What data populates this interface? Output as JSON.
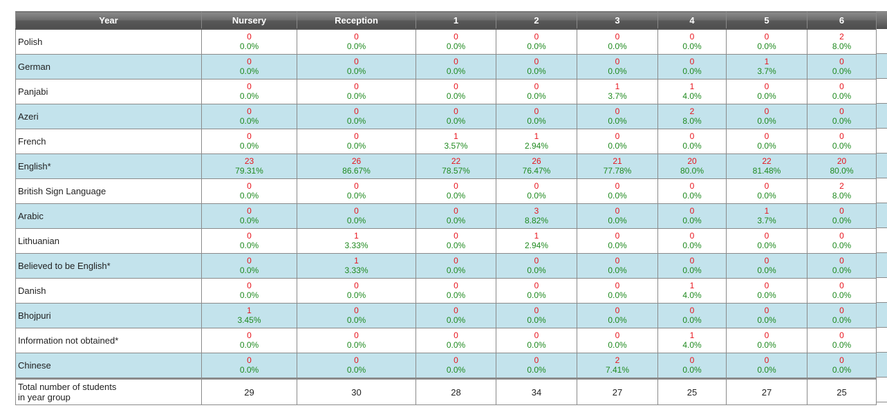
{
  "table": {
    "headers": [
      "Year",
      "Nursery",
      "Reception",
      "1",
      "2",
      "3",
      "4",
      "5",
      "6"
    ],
    "rows": [
      {
        "label": "Polish",
        "cells": [
          [
            "0",
            "0.0%"
          ],
          [
            "0",
            "0.0%"
          ],
          [
            "0",
            "0.0%"
          ],
          [
            "0",
            "0.0%"
          ],
          [
            "0",
            "0.0%"
          ],
          [
            "0",
            "0.0%"
          ],
          [
            "0",
            "0.0%"
          ],
          [
            "2",
            "8.0%"
          ]
        ]
      },
      {
        "label": "German",
        "cells": [
          [
            "0",
            "0.0%"
          ],
          [
            "0",
            "0.0%"
          ],
          [
            "0",
            "0.0%"
          ],
          [
            "0",
            "0.0%"
          ],
          [
            "0",
            "0.0%"
          ],
          [
            "0",
            "0.0%"
          ],
          [
            "1",
            "3.7%"
          ],
          [
            "0",
            "0.0%"
          ]
        ]
      },
      {
        "label": "Panjabi",
        "cells": [
          [
            "0",
            "0.0%"
          ],
          [
            "0",
            "0.0%"
          ],
          [
            "0",
            "0.0%"
          ],
          [
            "0",
            "0.0%"
          ],
          [
            "1",
            "3.7%"
          ],
          [
            "1",
            "4.0%"
          ],
          [
            "0",
            "0.0%"
          ],
          [
            "0",
            "0.0%"
          ]
        ]
      },
      {
        "label": "Azeri",
        "cells": [
          [
            "0",
            "0.0%"
          ],
          [
            "0",
            "0.0%"
          ],
          [
            "0",
            "0.0%"
          ],
          [
            "0",
            "0.0%"
          ],
          [
            "0",
            "0.0%"
          ],
          [
            "2",
            "8.0%"
          ],
          [
            "0",
            "0.0%"
          ],
          [
            "0",
            "0.0%"
          ]
        ]
      },
      {
        "label": "French",
        "cells": [
          [
            "0",
            "0.0%"
          ],
          [
            "0",
            "0.0%"
          ],
          [
            "1",
            "3.57%"
          ],
          [
            "1",
            "2.94%"
          ],
          [
            "0",
            "0.0%"
          ],
          [
            "0",
            "0.0%"
          ],
          [
            "0",
            "0.0%"
          ],
          [
            "0",
            "0.0%"
          ]
        ]
      },
      {
        "label": "English*",
        "cells": [
          [
            "23",
            "79.31%"
          ],
          [
            "26",
            "86.67%"
          ],
          [
            "22",
            "78.57%"
          ],
          [
            "26",
            "76.47%"
          ],
          [
            "21",
            "77.78%"
          ],
          [
            "20",
            "80.0%"
          ],
          [
            "22",
            "81.48%"
          ],
          [
            "20",
            "80.0%"
          ]
        ]
      },
      {
        "label": "British Sign Language",
        "cells": [
          [
            "0",
            "0.0%"
          ],
          [
            "0",
            "0.0%"
          ],
          [
            "0",
            "0.0%"
          ],
          [
            "0",
            "0.0%"
          ],
          [
            "0",
            "0.0%"
          ],
          [
            "0",
            "0.0%"
          ],
          [
            "0",
            "0.0%"
          ],
          [
            "2",
            "8.0%"
          ]
        ]
      },
      {
        "label": "Arabic",
        "cells": [
          [
            "0",
            "0.0%"
          ],
          [
            "0",
            "0.0%"
          ],
          [
            "0",
            "0.0%"
          ],
          [
            "3",
            "8.82%"
          ],
          [
            "0",
            "0.0%"
          ],
          [
            "0",
            "0.0%"
          ],
          [
            "1",
            "3.7%"
          ],
          [
            "0",
            "0.0%"
          ]
        ]
      },
      {
        "label": "Lithuanian",
        "cells": [
          [
            "0",
            "0.0%"
          ],
          [
            "1",
            "3.33%"
          ],
          [
            "0",
            "0.0%"
          ],
          [
            "1",
            "2.94%"
          ],
          [
            "0",
            "0.0%"
          ],
          [
            "0",
            "0.0%"
          ],
          [
            "0",
            "0.0%"
          ],
          [
            "0",
            "0.0%"
          ]
        ]
      },
      {
        "label": "Believed to be English*",
        "cells": [
          [
            "0",
            "0.0%"
          ],
          [
            "1",
            "3.33%"
          ],
          [
            "0",
            "0.0%"
          ],
          [
            "0",
            "0.0%"
          ],
          [
            "0",
            "0.0%"
          ],
          [
            "0",
            "0.0%"
          ],
          [
            "0",
            "0.0%"
          ],
          [
            "0",
            "0.0%"
          ]
        ]
      },
      {
        "label": "Danish",
        "cells": [
          [
            "0",
            "0.0%"
          ],
          [
            "0",
            "0.0%"
          ],
          [
            "0",
            "0.0%"
          ],
          [
            "0",
            "0.0%"
          ],
          [
            "0",
            "0.0%"
          ],
          [
            "1",
            "4.0%"
          ],
          [
            "0",
            "0.0%"
          ],
          [
            "0",
            "0.0%"
          ]
        ]
      },
      {
        "label": "Bhojpuri",
        "cells": [
          [
            "1",
            "3.45%"
          ],
          [
            "0",
            "0.0%"
          ],
          [
            "0",
            "0.0%"
          ],
          [
            "0",
            "0.0%"
          ],
          [
            "0",
            "0.0%"
          ],
          [
            "0",
            "0.0%"
          ],
          [
            "0",
            "0.0%"
          ],
          [
            "0",
            "0.0%"
          ]
        ]
      },
      {
        "label": "Information not obtained*",
        "cells": [
          [
            "0",
            "0.0%"
          ],
          [
            "0",
            "0.0%"
          ],
          [
            "0",
            "0.0%"
          ],
          [
            "0",
            "0.0%"
          ],
          [
            "0",
            "0.0%"
          ],
          [
            "1",
            "4.0%"
          ],
          [
            "0",
            "0.0%"
          ],
          [
            "0",
            "0.0%"
          ]
        ]
      },
      {
        "label": "Chinese",
        "cells": [
          [
            "0",
            "0.0%"
          ],
          [
            "0",
            "0.0%"
          ],
          [
            "0",
            "0.0%"
          ],
          [
            "0",
            "0.0%"
          ],
          [
            "2",
            "7.41%"
          ],
          [
            "0",
            "0.0%"
          ],
          [
            "0",
            "0.0%"
          ],
          [
            "0",
            "0.0%"
          ]
        ]
      }
    ],
    "total": {
      "label_line1": "Total number of students",
      "label_line2": "in year group",
      "values": [
        "29",
        "30",
        "28",
        "34",
        "27",
        "25",
        "27",
        "25"
      ]
    }
  },
  "colors": {
    "count_text": "#e8141c",
    "percent_text": "#1f8a1f",
    "alt_row_bg": "#c3e3ec",
    "header_bg": "#6a6a6a"
  }
}
